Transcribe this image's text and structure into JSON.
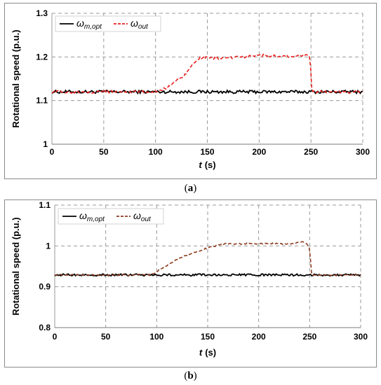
{
  "chart_data": [
    {
      "type": "line",
      "panel": "a",
      "caption_open": "(",
      "caption_letter": "a",
      "caption_close": ")",
      "xlabel": "t",
      "xunit": "(s)",
      "ylabel": "Rotational speed (p.u.)",
      "xlim": [
        0,
        300
      ],
      "ylim": [
        1.0,
        1.3
      ],
      "xticks": [
        "0",
        "50",
        "100",
        "150",
        "200",
        "250",
        "300"
      ],
      "yticks": [
        "1",
        "1.1",
        "1.2",
        "1.3"
      ],
      "grid": true,
      "legend_position": "top-left",
      "series": [
        {
          "name_base": "ω",
          "name_sub": "m,opt",
          "color": "#000000",
          "style": "solid",
          "baseline": 1.12,
          "noise": 0.0035,
          "points": [
            [
              0,
              1.12
            ],
            [
              300,
              1.12
            ]
          ]
        },
        {
          "name_base": "ω",
          "name_sub": "out",
          "color": "#e8201e",
          "style": "dashed",
          "baseline": 1.12,
          "noise": 0.0028,
          "points": [
            [
              0,
              1.12
            ],
            [
              100,
              1.12
            ],
            [
              110,
              1.128
            ],
            [
              120,
              1.145
            ],
            [
              128,
              1.158
            ],
            [
              135,
              1.18
            ],
            [
              140,
              1.195
            ],
            [
              145,
              1.198
            ],
            [
              160,
              1.197
            ],
            [
              180,
              1.199
            ],
            [
              200,
              1.204
            ],
            [
              220,
              1.201
            ],
            [
              245,
              1.203
            ],
            [
              249,
              1.2
            ],
            [
              251,
              1.12
            ],
            [
              300,
              1.12
            ]
          ]
        }
      ]
    },
    {
      "type": "line",
      "panel": "b",
      "caption_open": "(",
      "caption_letter": "b",
      "caption_close": ")",
      "xlabel": "t",
      "xunit": "(s)",
      "ylabel": "Rotational speed (p.u.)",
      "xlim": [
        0,
        300
      ],
      "ylim": [
        0.8,
        1.1
      ],
      "xticks": [
        "0",
        "50",
        "100",
        "150",
        "200",
        "250",
        "300"
      ],
      "yticks": [
        "0.8",
        "0.9",
        "1",
        "1.1"
      ],
      "grid": true,
      "legend_position": "top-left",
      "series": [
        {
          "name_base": "ω",
          "name_sub": "m,opt",
          "color": "#000000",
          "style": "solid",
          "baseline": 0.929,
          "noise": 0.0025,
          "points": [
            [
              0,
              0.929
            ],
            [
              300,
              0.929
            ]
          ]
        },
        {
          "name_base": "ω",
          "name_sub": "out",
          "color": "#8b3a1e",
          "style": "dashed",
          "baseline": 0.929,
          "noise": 0.0015,
          "points": [
            [
              0,
              0.929
            ],
            [
              95,
              0.929
            ],
            [
              105,
              0.945
            ],
            [
              120,
              0.968
            ],
            [
              135,
              0.983
            ],
            [
              150,
              0.995
            ],
            [
              165,
              1.005
            ],
            [
              200,
              1.006
            ],
            [
              230,
              1.005
            ],
            [
              242,
              1.01
            ],
            [
              247,
              1.007
            ],
            [
              250,
              0.992
            ],
            [
              252,
              0.929
            ],
            [
              300,
              0.929
            ]
          ]
        }
      ]
    }
  ]
}
